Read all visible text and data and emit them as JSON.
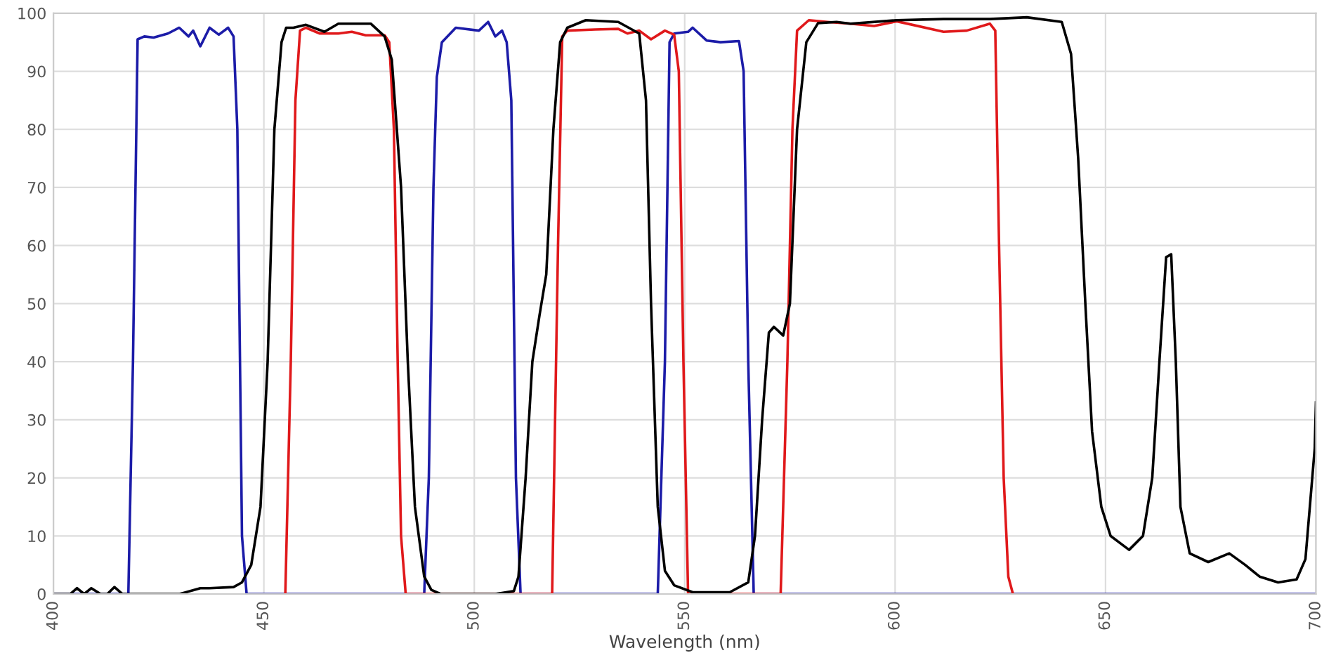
{
  "chart_data": {
    "type": "line",
    "xlabel": "Wavelength (nm)",
    "xlim": [
      400,
      700
    ],
    "xticks": [
      400,
      450,
      500,
      550,
      600,
      650,
      700
    ],
    "ylim": [
      0,
      100
    ],
    "yticks": [
      0,
      10,
      20,
      30,
      40,
      50,
      60,
      70,
      80,
      90,
      100
    ],
    "grid": true,
    "marker": "none",
    "line_style": "solid",
    "series": [
      {
        "color": "#1c1ca8",
        "x": [
          400,
          417.8,
          418.9,
          420,
          421.6,
          423.8,
          427.2,
          429.9,
          432.1,
          433.2,
          434.9,
          437.1,
          439.3,
          441.5,
          442.8,
          443.7,
          444.8,
          445.9,
          488.1,
          489.2,
          490.3,
          491.1,
          492.3,
          495.6,
          501.1,
          503.3,
          505,
          506.6,
          507.7,
          508.8,
          509.9,
          511,
          543.6,
          545.3,
          546.4,
          547.5,
          550.8,
          551.9,
          555.2,
          558.5,
          562.9,
          564,
          565.1,
          566.4,
          700
        ],
        "values": [
          0,
          0,
          40,
          95.5,
          96,
          95.8,
          96.5,
          97.5,
          96,
          97,
          94.3,
          97.5,
          96.3,
          97.5,
          96,
          80,
          10,
          0,
          0,
          20,
          70,
          89,
          95,
          97.5,
          97,
          98.5,
          96,
          97,
          95,
          85,
          20,
          0,
          0,
          40,
          95,
          96.5,
          96.8,
          97.5,
          95.3,
          95,
          95.2,
          90,
          40,
          0,
          0
        ]
      },
      {
        "color": "#e0191b",
        "x": [
          455.1,
          456.4,
          457.5,
          458.6,
          460,
          463.3,
          467.7,
          470.9,
          474.2,
          478.7,
          479.8,
          480.9,
          481.8,
          482.6,
          483.7,
          518.5,
          519.9,
          520.9,
          522.1,
          528.7,
          534.2,
          536.4,
          539.2,
          542,
          545.3,
          547.5,
          548.6,
          549.7,
          550.8,
          572.8,
          574.4,
          575.6,
          576.7,
          579.5,
          583.9,
          589.4,
          595,
          600.4,
          611.5,
          617,
          622.5,
          623.8,
          624.7,
          625.8,
          626.9,
          628
        ],
        "values": [
          0,
          40,
          85,
          97,
          97.5,
          96.5,
          96.5,
          96.8,
          96.2,
          96.2,
          95,
          80,
          40,
          10,
          0,
          0,
          60,
          96,
          97,
          97.2,
          97.3,
          96.5,
          97,
          95.5,
          97,
          96.3,
          90,
          40,
          0,
          0,
          40,
          80,
          97,
          98.8,
          98.5,
          98.2,
          97.8,
          98.6,
          96.8,
          97,
          98.2,
          97,
          60,
          20,
          3,
          0
        ]
      },
      {
        "color": "#000000",
        "x": [
          400,
          404,
          405.6,
          407.3,
          409,
          411.2,
          412.8,
          414.5,
          416.4,
          418,
          420,
          430,
          434.9,
          437,
          442.8,
          444.8,
          447,
          449.2,
          450.9,
          452.5,
          454.2,
          455.3,
          457,
          460,
          464.4,
          467.7,
          475.4,
          478.7,
          480.4,
          482.6,
          484.2,
          485.9,
          488.1,
          489.8,
          492,
          505,
          509.4,
          510.5,
          512.2,
          513.8,
          515.5,
          517.1,
          518.8,
          520.4,
          522.1,
          526.5,
          534.2,
          539.2,
          540.8,
          542,
          543.6,
          545.3,
          547.5,
          551.9,
          560.7,
          565.1,
          566.7,
          568.4,
          570,
          571.2,
          573.4,
          575,
          576.7,
          578.9,
          581.7,
          586.1,
          589.4,
          600.4,
          611.5,
          622.5,
          631.3,
          639.6,
          641.8,
          643.5,
          645.2,
          646.8,
          649,
          651.2,
          655.6,
          658.9,
          661.1,
          662.8,
          664.4,
          665.6,
          666.7,
          667.8,
          670,
          674.4,
          679.4,
          683.2,
          686.6,
          691,
          695.4,
          697.5,
          699.7,
          700
        ],
        "values": [
          0,
          0,
          1,
          0,
          1,
          0,
          0,
          1.2,
          0,
          0,
          0,
          0,
          1,
          1,
          1.2,
          2,
          5,
          15,
          40,
          80,
          95,
          97.5,
          97.5,
          98,
          96.8,
          98.2,
          98.2,
          96,
          92,
          70,
          40,
          15,
          3,
          0.7,
          0,
          0,
          0.5,
          3,
          20,
          40,
          48,
          55,
          80,
          95,
          97.5,
          98.8,
          98.5,
          96.5,
          85,
          50,
          15,
          4,
          1.5,
          0.3,
          0.3,
          2,
          10,
          30,
          45,
          46,
          44.5,
          50,
          80,
          95,
          98.3,
          98.5,
          98.2,
          98.8,
          99,
          99,
          99.3,
          98.5,
          93,
          75,
          50,
          28,
          15,
          10,
          7.6,
          10,
          20,
          40,
          58,
          58.5,
          40,
          15,
          7,
          5.5,
          7,
          5,
          3,
          2,
          2.5,
          6,
          25,
          33
        ]
      }
    ]
  }
}
